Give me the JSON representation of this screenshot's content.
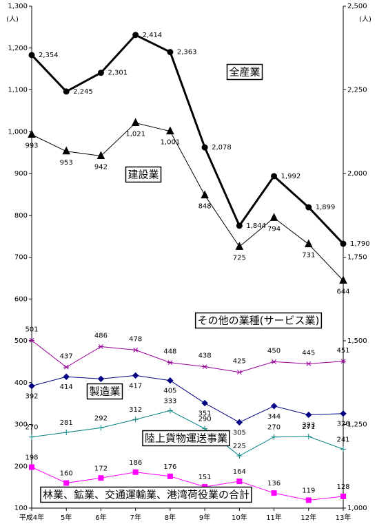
{
  "chart_data": {
    "type": "line",
    "y_label": "(人)",
    "y2_label": "(人)",
    "categories": [
      "平成4年",
      "5年",
      "6年",
      "7年",
      "8年",
      "9年",
      "10年",
      "11年",
      "12年",
      "13年"
    ],
    "ylim": [
      100,
      1300
    ],
    "yticks": [
      100,
      200,
      300,
      400,
      500,
      600,
      700,
      800,
      900,
      {
        "value": 1000,
        "label": "1,000"
      },
      {
        "value": 1100,
        "label": "1,100"
      },
      {
        "value": 1200,
        "label": "1,200"
      },
      {
        "value": 1300,
        "label": "1,300"
      }
    ],
    "y2lim": [
      1000,
      2500
    ],
    "y2ticks": [
      {
        "value": 1000,
        "label": "1,000"
      },
      {
        "value": 1250,
        "label": "1,250"
      },
      {
        "value": 1500,
        "label": "1,500"
      },
      {
        "value": 1750,
        "label": "1,750"
      },
      {
        "value": 2000,
        "label": "2,000"
      },
      {
        "value": 2250,
        "label": "2,250"
      },
      {
        "value": 2500,
        "label": "2,500"
      }
    ],
    "series": [
      {
        "name": "全産業",
        "color": "#000000",
        "axis": "y2",
        "values": [
          2354,
          2245,
          2301,
          2414,
          2363,
          2078,
          1844,
          1992,
          1899,
          1790
        ],
        "value_labels": [
          "2,354",
          "2,245",
          "2,301",
          "2,414",
          "2,363",
          "2,078",
          "1,844",
          "1,992",
          "1,899",
          "1,790"
        ]
      },
      {
        "name": "建設業",
        "color": "#000000",
        "values": [
          993,
          953,
          942,
          1021,
          1001,
          848,
          725,
          794,
          731,
          644
        ],
        "value_labels": [
          "993",
          "953",
          "942",
          "1,021",
          "1,001",
          "848",
          "725",
          "794",
          "731",
          "644"
        ]
      },
      {
        "name": "その他の業種(サービス業)",
        "color": "#990099",
        "values": [
          501,
          437,
          486,
          478,
          448,
          438,
          425,
          450,
          445,
          451
        ]
      },
      {
        "name": "製造業",
        "color": "#000080",
        "values": [
          392,
          414,
          409,
          417,
          405,
          351,
          305,
          344,
          323,
          326
        ]
      },
      {
        "name": "陸上貨物運送事業",
        "color": "#008080",
        "values": [
          270,
          281,
          292,
          312,
          333,
          290,
          225,
          270,
          271,
          241
        ]
      },
      {
        "name": "林業、鉱業、交通運輸業、港湾荷役業の合計",
        "color": "#ff00ff",
        "values": [
          198,
          160,
          172,
          186,
          176,
          151,
          164,
          136,
          119,
          128
        ]
      }
    ]
  }
}
